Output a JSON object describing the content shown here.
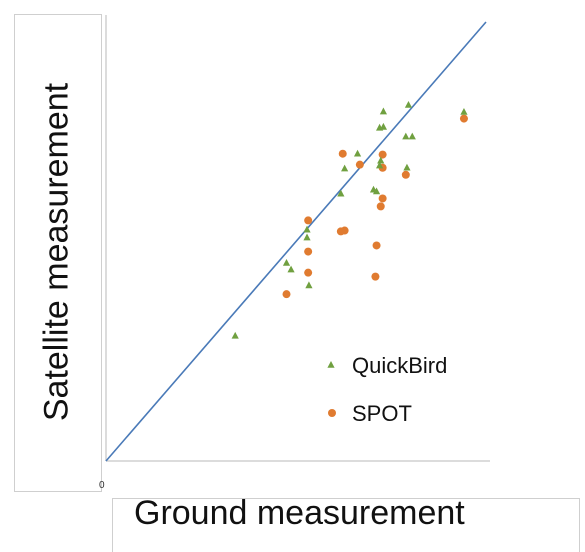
{
  "chart_data": {
    "type": "scatter",
    "title": "",
    "xlabel": "Ground measurement",
    "ylabel": "Satellite measurement",
    "origin_tick": "0",
    "xlim": [
      0,
      100
    ],
    "ylim": [
      0,
      100
    ],
    "grid": false,
    "legend_position": "bottom-right",
    "reference_line": {
      "type": "identity",
      "x": [
        0,
        100
      ],
      "y": [
        0,
        100
      ],
      "color": "#4a7ab8"
    },
    "series": [
      {
        "name": "QuickBird",
        "marker": "triangle",
        "color": "#70a040",
        "points": [
          [
            34.0,
            28.5
          ],
          [
            47.5,
            45.1
          ],
          [
            48.7,
            43.6
          ],
          [
            52.9,
            52.7
          ],
          [
            52.9,
            50.9
          ],
          [
            53.4,
            40.0
          ],
          [
            61.8,
            60.9
          ],
          [
            62.8,
            66.6
          ],
          [
            66.2,
            70.0
          ],
          [
            70.4,
            61.8
          ],
          [
            71.2,
            61.4
          ],
          [
            72.0,
            67.3
          ],
          [
            72.0,
            75.9
          ],
          [
            72.3,
            68.4
          ],
          [
            73.0,
            79.6
          ],
          [
            73.0,
            76.1
          ],
          [
            78.9,
            73.9
          ],
          [
            79.2,
            66.8
          ],
          [
            80.6,
            73.9
          ],
          [
            94.2,
            79.5
          ],
          [
            79.6,
            81.1
          ]
        ]
      },
      {
        "name": "SPOT",
        "marker": "circle",
        "color": "#e07b30",
        "points": [
          [
            47.5,
            38.0
          ],
          [
            53.2,
            42.9
          ],
          [
            53.2,
            47.7
          ],
          [
            53.2,
            54.8
          ],
          [
            61.8,
            52.3
          ],
          [
            62.8,
            52.5
          ],
          [
            62.3,
            70.0
          ],
          [
            66.8,
            67.5
          ],
          [
            70.9,
            42.0
          ],
          [
            71.2,
            49.1
          ],
          [
            72.3,
            58.0
          ],
          [
            72.8,
            59.8
          ],
          [
            72.8,
            66.8
          ],
          [
            72.8,
            69.8
          ],
          [
            78.9,
            65.2
          ],
          [
            94.2,
            78.0
          ]
        ]
      }
    ]
  }
}
